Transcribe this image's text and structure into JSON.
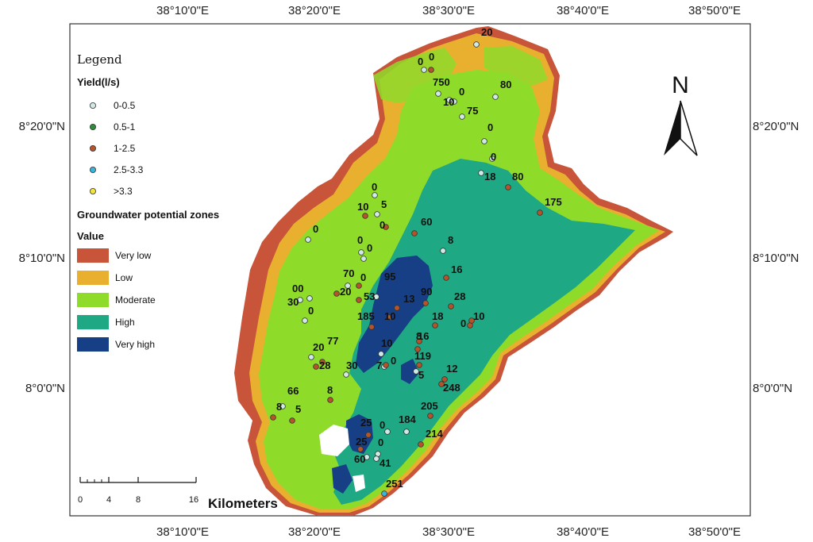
{
  "map": {
    "lon_labels": [
      "38°10'0\"E",
      "38°20'0\"E",
      "38°30'0\"E",
      "38°40'0\"E",
      "38°50'0\"E"
    ],
    "lat_labels": [
      "8°20'0\"N",
      "8°10'0\"N",
      "8°0'0\"N"
    ]
  },
  "legend": {
    "title": "Legend",
    "yield_heading": "Yield(l/s)",
    "yield_classes": [
      {
        "label": "0-0.5",
        "color": "#cfe9e6"
      },
      {
        "label": "0.5-1",
        "color": "#2e8b3a"
      },
      {
        "label": "1-2.5",
        "color": "#b5532a"
      },
      {
        "label": "2.5-3.3",
        "color": "#3ab5d9"
      },
      {
        "label": ">3.3",
        "color": "#f2e53a"
      }
    ],
    "gw_heading": "Groundwater potential zones",
    "value_heading": "Value",
    "zones": [
      {
        "label": "Very low",
        "color": "#c8553a"
      },
      {
        "label": "Low",
        "color": "#e9b030"
      },
      {
        "label": "Moderate",
        "color": "#8fdb2a"
      },
      {
        "label": "High",
        "color": "#1fa884"
      },
      {
        "label": "Very high",
        "color": "#163f86"
      }
    ]
  },
  "north_arrow": {
    "label": "N"
  },
  "scale_bar": {
    "ticks": [
      "0",
      "4",
      "8",
      "16"
    ],
    "unit": "Kilometers"
  },
  "yield_values": [
    "20",
    "0",
    "0",
    "750",
    "0",
    "80",
    "10",
    "75",
    "0",
    "0",
    "18",
    "80",
    "175",
    "0",
    "10",
    "5",
    "0",
    "60",
    "0",
    "0",
    "0",
    "8",
    "70",
    "0",
    "95",
    "16",
    "20",
    "53",
    "00",
    "30",
    "0",
    "13",
    "90",
    "28",
    "185",
    "10",
    "18",
    "0",
    "10",
    "8",
    "20",
    "77",
    "10",
    "16",
    "119",
    "28",
    "30",
    "7",
    "0",
    "12",
    "5",
    "66",
    "8",
    "248",
    "5",
    "8",
    "205",
    "25",
    "0",
    "184",
    "214",
    "25",
    "0",
    "60",
    "41",
    "251"
  ]
}
